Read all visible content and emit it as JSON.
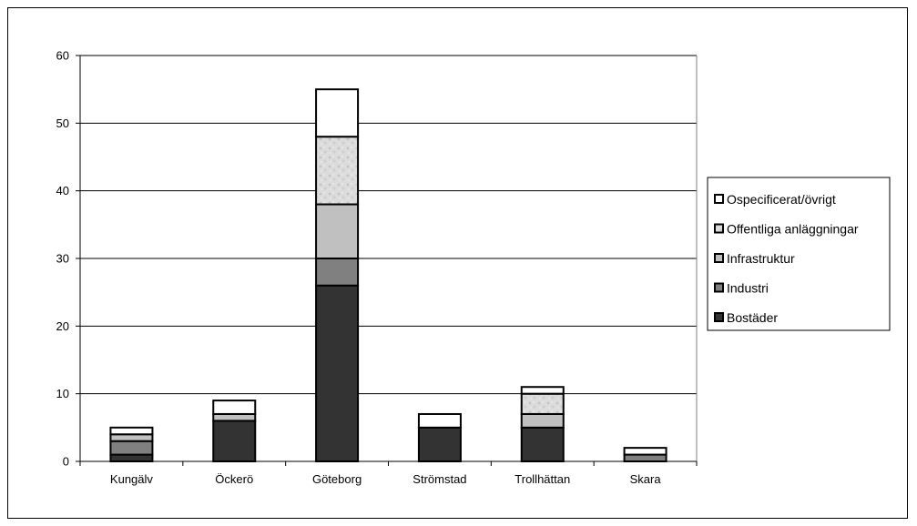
{
  "chart_data": {
    "type": "bar",
    "stacked": true,
    "categories": [
      "Kungälv",
      "Öckerö",
      "Göteborg",
      "Strömstad",
      "Trollhättan",
      "Skara"
    ],
    "series": [
      {
        "name": "Bostäder",
        "values": [
          1,
          6,
          26,
          5,
          5,
          0
        ],
        "color": "#333333"
      },
      {
        "name": "Industri",
        "values": [
          2,
          0,
          4,
          0,
          0,
          1
        ],
        "color": "#808080"
      },
      {
        "name": "Infrastruktur",
        "values": [
          1,
          1,
          8,
          0,
          2,
          0
        ],
        "color": "#c0c0c0"
      },
      {
        "name": "Offentliga anläggningar",
        "values": [
          0,
          0,
          10,
          0,
          3,
          0
        ],
        "color": "#e4e4e4"
      },
      {
        "name": "Ospecificerat/övrigt",
        "values": [
          1,
          2,
          7,
          2,
          1,
          1
        ],
        "color": "#ffffff"
      }
    ],
    "legend_order": [
      "Ospecificerat/övrigt",
      "Offentliga anläggningar",
      "Infrastruktur",
      "Industri",
      "Bostäder"
    ],
    "ylim": [
      0,
      60
    ],
    "yticks": [
      0,
      10,
      20,
      30,
      40,
      50,
      60
    ],
    "grid": true,
    "legend_position": "right",
    "xlabel": "",
    "ylabel": "",
    "title": ""
  }
}
